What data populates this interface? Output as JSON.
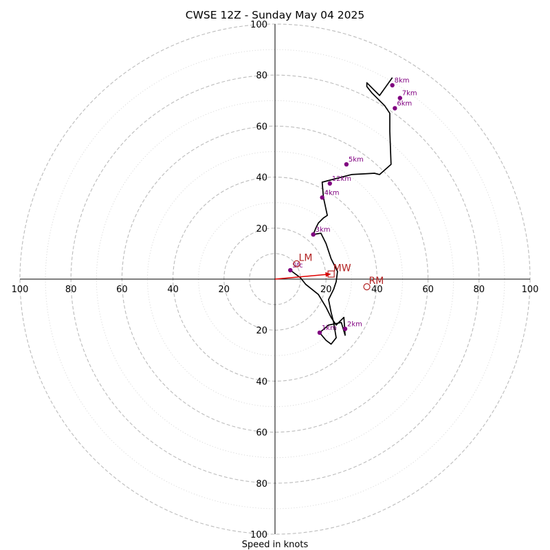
{
  "chart_data": {
    "type": "hodograph",
    "title": "CWSE 12Z - Sunday May 04 2025",
    "xlabel": "Speed in knots",
    "range": [
      -100,
      100
    ],
    "axis_ticks": [
      {
        "value": -100,
        "label": "100"
      },
      {
        "value": -80,
        "label": "80"
      },
      {
        "value": -60,
        "label": "60"
      },
      {
        "value": -40,
        "label": "40"
      },
      {
        "value": -20,
        "label": "20"
      },
      {
        "value": 20,
        "label": "20"
      },
      {
        "value": 40,
        "label": "40"
      },
      {
        "value": 60,
        "label": "60"
      },
      {
        "value": 80,
        "label": "80"
      },
      {
        "value": 100,
        "label": "100"
      }
    ],
    "rings_dashed": [
      10,
      20,
      40,
      60,
      80,
      100
    ],
    "rings_dotted": [
      30,
      50,
      70,
      90
    ],
    "grid": true,
    "colors": {
      "trace": "#000000",
      "height_markers": "#800080",
      "motion_markers": "#b22222",
      "mean_wind_vector": "#e00000",
      "rings": "#bbbbbb"
    },
    "trace": [
      [
        6,
        3.5
      ],
      [
        10,
        0.5
      ],
      [
        12,
        -2
      ],
      [
        17,
        -6
      ],
      [
        20,
        -11
      ],
      [
        22,
        -15
      ],
      [
        24,
        -18
      ],
      [
        27,
        -15
      ],
      [
        27.5,
        -22
      ],
      [
        26,
        -17
      ],
      [
        21,
        -18
      ],
      [
        17.5,
        -21
      ],
      [
        20,
        -24
      ],
      [
        22,
        -25.5
      ],
      [
        24,
        -23
      ],
      [
        23,
        -17
      ],
      [
        22,
        -13
      ],
      [
        21,
        -8
      ],
      [
        23,
        -4
      ],
      [
        24,
        -1
      ],
      [
        24.5,
        3
      ],
      [
        22,
        8
      ],
      [
        20,
        14
      ],
      [
        18,
        18
      ],
      [
        15,
        17.5
      ],
      [
        16,
        20
      ],
      [
        17,
        22
      ],
      [
        19,
        24
      ],
      [
        20.5,
        25
      ],
      [
        19,
        32
      ],
      [
        18.5,
        38
      ],
      [
        30,
        41
      ],
      [
        39,
        41.5
      ],
      [
        41,
        41
      ],
      [
        45.5,
        45
      ],
      [
        45,
        58
      ],
      [
        45,
        64
      ],
      [
        45,
        65
      ],
      [
        43,
        68
      ],
      [
        41,
        70
      ],
      [
        38,
        73
      ],
      [
        36,
        75.5
      ],
      [
        36,
        77
      ],
      [
        38,
        75
      ],
      [
        41,
        72
      ],
      [
        46,
        79
      ]
    ],
    "height_markers": [
      {
        "label": "Sfc",
        "u": 6,
        "v": 3.5
      },
      {
        "label": "1km",
        "u": 17.5,
        "v": -21
      },
      {
        "label": "2km",
        "u": 27.5,
        "v": -19.5
      },
      {
        "label": "3km",
        "u": 15,
        "v": 17.5
      },
      {
        "label": "4km",
        "u": 18.5,
        "v": 32
      },
      {
        "label": "5km",
        "u": 28,
        "v": 45
      },
      {
        "label": "6km",
        "u": 47,
        "v": 67
      },
      {
        "label": "7km",
        "u": 49,
        "v": 71
      },
      {
        "label": "8km",
        "u": 46,
        "v": 76
      },
      {
        "label": "12km",
        "u": 21.5,
        "v": 37.5
      }
    ],
    "storm_motion": [
      {
        "label": "LM",
        "u": 8.5,
        "v": 6
      },
      {
        "label": "MW",
        "u": 22,
        "v": 2
      },
      {
        "label": "RM",
        "u": 36,
        "v": -3
      }
    ]
  }
}
